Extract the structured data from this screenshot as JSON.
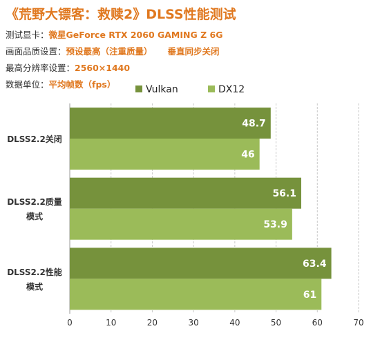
{
  "header": {
    "title": "《荒野大镖客：救赎2》DLSS性能测试",
    "gpu_label": "测试显卡：",
    "gpu_value": "微星GeForce RTX 2060 GAMING Z 6G",
    "quality_label": "画面品质设置：",
    "quality_value": "预设最高（注重质量）",
    "vsync_value": "垂直同步关闭",
    "resolution_label": "最高分辨率设置：",
    "resolution_value": "2560×1440",
    "unit_label": "数据单位：",
    "unit_value": "平均帧数（fps）"
  },
  "colors": {
    "accent": "#e0781f",
    "vulkan": "#76923c",
    "dx12": "#9bbb59"
  },
  "chart_data": {
    "type": "bar",
    "orientation": "horizontal",
    "categories": [
      "DLSS2.2关闭",
      "DLSS2.2质量模式",
      "DLSS2.2性能模式"
    ],
    "category_lines": [
      [
        "DLSS2.2关闭"
      ],
      [
        "DLSS2.2质量",
        "模式"
      ],
      [
        "DLSS2.2性能",
        "模式"
      ]
    ],
    "series": [
      {
        "name": "Vulkan",
        "values": [
          48.7,
          56.1,
          63.4
        ]
      },
      {
        "name": "DX12",
        "values": [
          46,
          53.9,
          61
        ]
      }
    ],
    "xlim": [
      0,
      70
    ],
    "xticks": [
      0,
      10,
      20,
      30,
      40,
      50,
      60,
      70
    ],
    "grid": true,
    "legend": "top"
  }
}
